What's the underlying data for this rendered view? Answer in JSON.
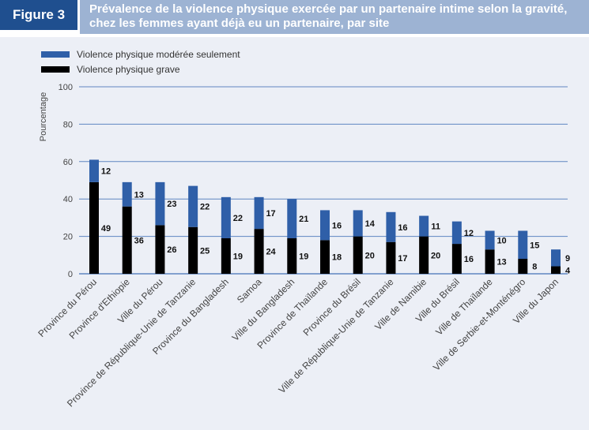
{
  "figure_label": "Figure 3",
  "chart_data": {
    "type": "bar",
    "stacked": true,
    "title": "Prévalence de la violence physique exercée par un partenaire intime selon la gravité, chez les femmes ayant déjà eu un partenaire, par site",
    "xlabel": "",
    "ylabel": "Pourcentage",
    "ylim": [
      0,
      100
    ],
    "yticks": [
      0,
      20,
      40,
      60,
      80,
      100
    ],
    "grid": true,
    "legend_position": "top-left",
    "categories": [
      "Province du Pérou",
      "Province d'Ethiopie",
      "Ville du Pérou",
      "Province de République-Unie de Tanzanie",
      "Province du Bangladesh",
      "Samoa",
      "Ville du Bangladesh",
      "Province de Thaïlande",
      "Province du Brésil",
      "Ville de République-Unie de Tanzanie",
      "Ville de Namibie",
      "Ville du Brésil",
      "Ville de Thaïlande",
      "Ville de Serbie-et-Monténégro",
      "Ville du Japon"
    ],
    "series": [
      {
        "name": "Violence physique grave",
        "color": "#000000",
        "values": [
          49,
          36,
          26,
          25,
          19,
          24,
          19,
          18,
          20,
          17,
          20,
          16,
          13,
          8,
          4
        ]
      },
      {
        "name": "Violence physique modérée seulement",
        "color": "#2f5fa8",
        "values": [
          12,
          13,
          23,
          22,
          22,
          17,
          21,
          16,
          14,
          16,
          11,
          12,
          10,
          15,
          9
        ]
      }
    ]
  }
}
